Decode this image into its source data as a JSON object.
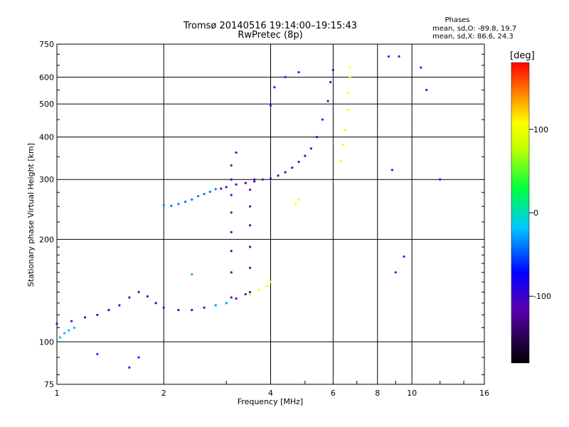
{
  "chart_data": {
    "type": "scatter",
    "title": "Tromsø 20140516 19:14:00–19:15:43",
    "subtitle": "RwPretec (8p)",
    "stats": {
      "heading": "Phases",
      "line_o": "mean, sd,O: -89.8, 19.7",
      "line_x": "mean, sd,X:  86.6, 24.3"
    },
    "xlabel": "Frequency [MHz]",
    "ylabel": "Stationary phase Virtual Height [km]",
    "x_scale": "log",
    "y_scale": "log",
    "xlim": [
      1,
      16
    ],
    "ylim": [
      75,
      750
    ],
    "x_ticks": [
      1,
      2,
      4,
      6,
      8,
      10,
      16
    ],
    "x_tick_labels": [
      "1",
      "2",
      "4",
      "6",
      "8",
      "10",
      "16"
    ],
    "y_ticks": [
      75,
      100,
      200,
      300,
      400,
      500,
      600,
      750
    ],
    "y_tick_labels": [
      "75",
      "100",
      "200",
      "300",
      "400",
      "500",
      "600",
      "750"
    ],
    "grid": true,
    "colorbar": {
      "label": "[deg]",
      "range": [
        -180,
        180
      ],
      "ticks": [
        100,
        0,
        -100
      ],
      "tick_labels": [
        "100",
        "0",
        "-100"
      ]
    },
    "series": [
      {
        "trace": "low-layer",
        "points": [
          [
            1.0,
            113
          ],
          [
            1.1,
            115
          ],
          [
            1.2,
            118
          ],
          [
            1.3,
            120
          ],
          [
            1.4,
            124
          ],
          [
            1.5,
            128
          ],
          [
            1.6,
            135
          ],
          [
            1.7,
            140
          ],
          [
            1.8,
            136
          ],
          [
            1.9,
            130
          ],
          [
            2.0,
            126
          ],
          [
            2.2,
            124
          ],
          [
            2.4,
            124
          ],
          [
            2.6,
            126
          ],
          [
            2.8,
            128
          ],
          [
            3.0,
            130
          ],
          [
            3.2,
            134
          ],
          [
            3.4,
            138
          ]
        ],
        "phase": -105
      },
      {
        "trace": "low-layer-cyan",
        "points": [
          [
            1.02,
            103
          ],
          [
            1.05,
            106
          ],
          [
            1.08,
            108
          ],
          [
            1.12,
            110
          ],
          [
            2.8,
            128
          ],
          [
            3.0,
            130
          ],
          [
            2.4,
            158
          ]
        ],
        "phase": -25
      },
      {
        "trace": "F-region-lower",
        "points": [
          [
            2.0,
            252
          ],
          [
            2.1,
            251
          ],
          [
            2.2,
            254
          ],
          [
            2.3,
            258
          ],
          [
            2.4,
            262
          ],
          [
            2.5,
            268
          ],
          [
            2.6,
            272
          ],
          [
            2.7,
            276
          ],
          [
            2.8,
            281
          ]
        ],
        "phase": -40
      },
      {
        "trace": "F-region-blue",
        "points": [
          [
            2.9,
            282
          ],
          [
            3.0,
            285
          ],
          [
            3.2,
            290
          ],
          [
            3.4,
            293
          ],
          [
            3.6,
            296
          ],
          [
            3.8,
            300
          ],
          [
            4.0,
            302
          ],
          [
            4.2,
            308
          ],
          [
            4.4,
            315
          ],
          [
            4.6,
            325
          ],
          [
            4.8,
            338
          ],
          [
            5.0,
            352
          ],
          [
            5.2,
            370
          ],
          [
            5.4,
            400
          ],
          [
            5.6,
            450
          ],
          [
            5.8,
            510
          ],
          [
            5.9,
            580
          ],
          [
            6.0,
            630
          ]
        ],
        "phase": -110
      },
      {
        "trace": "vertical-spread-1",
        "points": [
          [
            3.1,
            135
          ],
          [
            3.1,
            160
          ],
          [
            3.1,
            185
          ],
          [
            3.1,
            210
          ],
          [
            3.1,
            240
          ],
          [
            3.1,
            270
          ],
          [
            3.1,
            300
          ],
          [
            3.1,
            330
          ],
          [
            3.2,
            360
          ]
        ],
        "phase": -115
      },
      {
        "trace": "vertical-spread-2",
        "points": [
          [
            3.5,
            140
          ],
          [
            3.5,
            165
          ],
          [
            3.5,
            190
          ],
          [
            3.5,
            220
          ],
          [
            3.5,
            250
          ],
          [
            3.5,
            280
          ],
          [
            3.6,
            300
          ]
        ],
        "phase": -115
      },
      {
        "trace": "X-mode-yellow",
        "points": [
          [
            3.5,
            138
          ],
          [
            3.7,
            142
          ],
          [
            3.9,
            146
          ],
          [
            4.0,
            150
          ],
          [
            4.7,
            255
          ],
          [
            4.8,
            262
          ],
          [
            6.3,
            340
          ],
          [
            6.4,
            380
          ],
          [
            6.5,
            420
          ],
          [
            6.6,
            480
          ],
          [
            6.6,
            540
          ],
          [
            6.7,
            600
          ],
          [
            6.7,
            640
          ]
        ],
        "phase": 100
      },
      {
        "trace": "scattered-points",
        "points": [
          [
            1.3,
            92
          ],
          [
            1.6,
            84
          ],
          [
            1.7,
            90
          ],
          [
            4.0,
            495
          ],
          [
            4.1,
            560
          ],
          [
            4.4,
            600
          ],
          [
            4.8,
            620
          ],
          [
            8.6,
            690
          ],
          [
            9.2,
            690
          ],
          [
            10.6,
            640
          ],
          [
            11.0,
            550
          ],
          [
            9.5,
            178
          ],
          [
            9.0,
            160
          ],
          [
            8.8,
            320
          ],
          [
            12.0,
            300
          ]
        ],
        "phase": -60
      }
    ]
  }
}
